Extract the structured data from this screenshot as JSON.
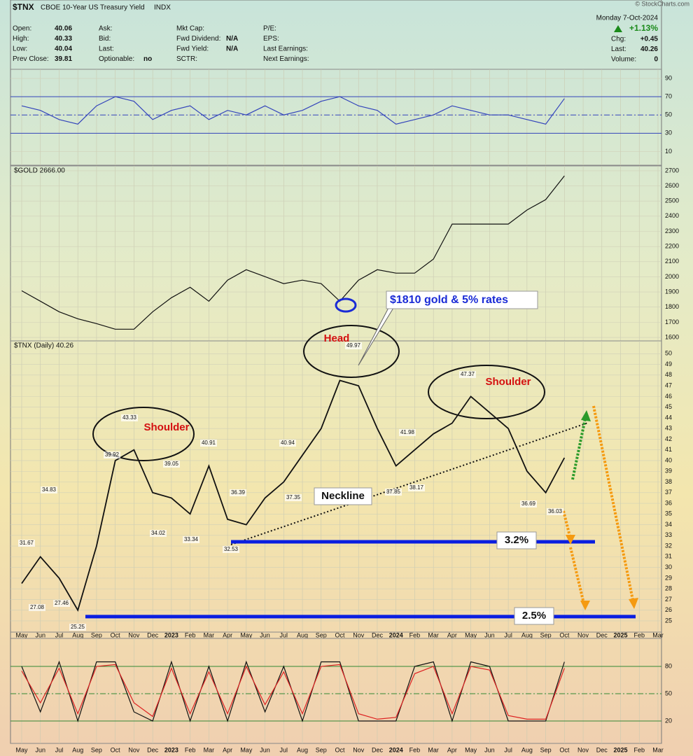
{
  "header": {
    "ticker": "$TNX",
    "name": "CBOE 10-Year US Treasury Yield",
    "exchange": "INDX",
    "date": "Monday 7-Oct-2024",
    "change_pct": "+1.13%",
    "source": "© StockCharts.com",
    "fields": [
      [
        {
          "label": "Open:",
          "value": "40.06"
        },
        {
          "label": "High:",
          "value": "40.33"
        },
        {
          "label": "Low:",
          "value": "40.04"
        },
        {
          "label": "Prev Close:",
          "value": "39.81"
        }
      ],
      [
        {
          "label": "Ask:"
        },
        {
          "label": "Bid:"
        },
        {
          "label": "Last:"
        },
        {
          "label": "Optionable:",
          "value": "no"
        }
      ],
      [
        {
          "label": "Mkt Cap:"
        },
        {
          "label": "Fwd Dividend:",
          "value": "N/A"
        },
        {
          "label": "Fwd Yield:",
          "value": "N/A"
        },
        {
          "label": "SCTR:"
        }
      ],
      [
        {
          "label": "P/E:"
        },
        {
          "label": "EPS:"
        },
        {
          "label": "Last Earnings:"
        },
        {
          "label": "Next Earnings:"
        }
      ]
    ],
    "right_fields": [
      {
        "label": "Chg:",
        "value": "+0.45"
      },
      {
        "label": "Last:",
        "value": "40.26"
      },
      {
        "label": "Volume:",
        "value": "0"
      }
    ]
  },
  "chart_data": [
    {
      "type": "line",
      "ylim": [
        -5,
        100
      ],
      "yticks": [
        10,
        30,
        50,
        70,
        90
      ],
      "reference_lines": [
        70,
        50,
        30
      ],
      "series": [
        {
          "color": "#3344bb",
          "values": [
            60,
            55,
            45,
            40,
            60,
            70,
            65,
            45,
            55,
            60,
            45,
            55,
            50,
            60,
            50,
            55,
            65,
            70,
            60,
            55,
            40,
            45,
            50,
            60,
            55,
            50,
            50,
            45,
            40,
            68,
            null,
            null,
            null,
            null,
            null
          ]
        }
      ]
    },
    {
      "type": "line",
      "title": "$GOLD 2666.00",
      "ylim": [
        1577,
        2732
      ],
      "yticks": [
        1600,
        1700,
        1800,
        1900,
        2000,
        2100,
        2200,
        2300,
        2400,
        2500,
        2600,
        2700
      ],
      "series": [
        {
          "color": "#111111",
          "values": [
            1908,
            1839,
            1769,
            1723,
            1691,
            1654,
            1654,
            1769,
            1862,
            1931,
            1839,
            1978,
            2047,
            2001,
            1955,
            1978,
            1955,
            1839,
            1978,
            2047,
            2024,
            2024,
            2117,
            2348,
            2348,
            2348,
            2348,
            2441,
            2510,
            2666,
            null,
            null,
            null,
            null,
            null
          ]
        }
      ]
    },
    {
      "type": "line",
      "title": "$TNX (Daily) 40.26",
      "ylim": [
        23.95,
        51.2
      ],
      "yticks": [
        25,
        26,
        27,
        28,
        29,
        30,
        31,
        32,
        33,
        34,
        35,
        36,
        37,
        38,
        39,
        40,
        41,
        42,
        43,
        44,
        45,
        46,
        47,
        48,
        49,
        50
      ],
      "categories": [
        "May",
        "Jun",
        "Jul",
        "Aug",
        "Sep",
        "Oct",
        "Nov",
        "Dec",
        "2023",
        "Feb",
        "Mar",
        "Apr",
        "May",
        "Jun",
        "Jul",
        "Aug",
        "Sep",
        "Oct",
        "Nov",
        "Dec",
        "2024",
        "Feb",
        "Mar",
        "Apr",
        "May",
        "Jun",
        "Jul",
        "Aug",
        "Sep",
        "Oct",
        "Nov",
        "Dec",
        "2025",
        "Feb",
        "Mar"
      ],
      "series": [
        {
          "color": "#111111",
          "values": [
            28.5,
            31,
            29,
            26,
            32,
            40,
            41,
            37,
            36.5,
            35,
            39.5,
            34.5,
            34,
            36.5,
            38,
            40.5,
            43,
            47.5,
            47,
            43,
            39.5,
            41,
            42.5,
            43.5,
            46,
            44.5,
            43,
            39,
            37,
            40.26,
            null,
            null,
            null,
            null,
            null
          ]
        }
      ],
      "price_labels": [
        31.67,
        34.83,
        27.08,
        27.46,
        25.25,
        39.92,
        43.33,
        39.05,
        34.02,
        33.34,
        40.91,
        36.39,
        32.53,
        40.94,
        37.35,
        49.97,
        41.98,
        37.85,
        38.17,
        47.37,
        36.69,
        36.03
      ],
      "annotations": [
        "Shoulder",
        "Head",
        "Shoulder",
        "Neckline",
        "$1810 gold & 5% rates"
      ],
      "levels": [
        {
          "label": "3.2%",
          "value": 32.4
        },
        {
          "label": "2.5%",
          "value": 25.4
        }
      ]
    },
    {
      "type": "line",
      "ylim": [
        -4.6,
        110.8
      ],
      "yticks": [
        20,
        50,
        80
      ],
      "reference_lines": [
        80,
        50,
        20
      ],
      "categories": [
        "May",
        "Jun",
        "Jul",
        "Aug",
        "Sep",
        "Oct",
        "Nov",
        "Dec",
        "2023",
        "Feb",
        "Mar",
        "Apr",
        "May",
        "Jun",
        "Jul",
        "Aug",
        "Sep",
        "Oct",
        "Nov",
        "Dec",
        "2024",
        "Feb",
        "Mar",
        "Apr",
        "May",
        "Jun",
        "Jul",
        "Aug",
        "Sep",
        "Oct",
        "Nov",
        "Dec",
        "2025",
        "Feb",
        "Mar"
      ],
      "series": [
        {
          "color": "#111111",
          "values": [
            80,
            30,
            85,
            20,
            85,
            85,
            30,
            20,
            85,
            20,
            80,
            20,
            85,
            30,
            80,
            20,
            85,
            85,
            20,
            20,
            20,
            80,
            85,
            20,
            85,
            80,
            20,
            20,
            20,
            85,
            null,
            null,
            null,
            null,
            null
          ]
        },
        {
          "color": "#dd2222",
          "values": [
            75,
            40,
            78,
            28,
            80,
            82,
            40,
            25,
            78,
            28,
            74,
            28,
            80,
            38,
            74,
            28,
            80,
            82,
            28,
            22,
            24,
            72,
            80,
            28,
            80,
            76,
            26,
            22,
            22,
            78,
            null,
            null,
            null,
            null,
            null
          ]
        }
      ]
    }
  ]
}
